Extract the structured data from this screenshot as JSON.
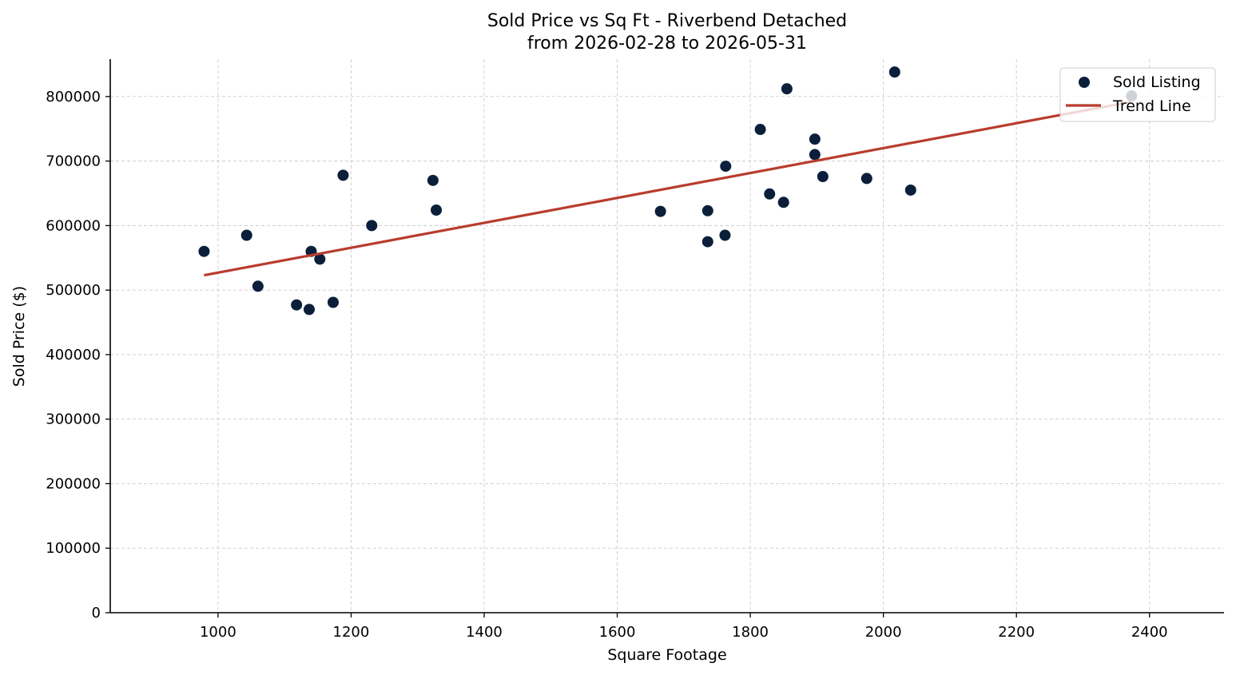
{
  "chart_data": {
    "type": "scatter",
    "title_line1": "Sold Price vs Sq Ft - Riverbend Detached",
    "title_line2": "from 2026-02-28 to 2026-05-31",
    "xlabel": "Square Footage",
    "ylabel": "Sold Price ($)",
    "xlim": [
      838,
      2512
    ],
    "ylim": [
      0,
      858000
    ],
    "x_ticks": [
      1000,
      1200,
      1400,
      1600,
      1800,
      2000,
      2200,
      2400
    ],
    "y_ticks": [
      0,
      100000,
      200000,
      300000,
      400000,
      500000,
      600000,
      700000,
      800000
    ],
    "grid": true,
    "legend_position": "top-right",
    "legend": {
      "scatter_label": "Sold Listing",
      "line_label": "Trend Line"
    },
    "colors": {
      "point": "#0b1f3a",
      "trend": "#b83c2e"
    },
    "series": [
      {
        "name": "Sold Listing",
        "kind": "scatter",
        "points": [
          {
            "x": 979,
            "y": 560000
          },
          {
            "x": 1043,
            "y": 585000
          },
          {
            "x": 1060,
            "y": 506000
          },
          {
            "x": 1118,
            "y": 477000
          },
          {
            "x": 1137,
            "y": 470000
          },
          {
            "x": 1140,
            "y": 560000
          },
          {
            "x": 1153,
            "y": 548000
          },
          {
            "x": 1173,
            "y": 481000
          },
          {
            "x": 1188,
            "y": 678000
          },
          {
            "x": 1231,
            "y": 600000
          },
          {
            "x": 1323,
            "y": 670000
          },
          {
            "x": 1328,
            "y": 624000
          },
          {
            "x": 1665,
            "y": 622000
          },
          {
            "x": 1736,
            "y": 623000
          },
          {
            "x": 1736,
            "y": 575000
          },
          {
            "x": 1762,
            "y": 585000
          },
          {
            "x": 1763,
            "y": 692000
          },
          {
            "x": 1815,
            "y": 749000
          },
          {
            "x": 1829,
            "y": 649000
          },
          {
            "x": 1850,
            "y": 636000
          },
          {
            "x": 1855,
            "y": 812000
          },
          {
            "x": 1897,
            "y": 734000
          },
          {
            "x": 1897,
            "y": 710000
          },
          {
            "x": 1909,
            "y": 676000
          },
          {
            "x": 1975,
            "y": 673000
          },
          {
            "x": 2017,
            "y": 838000
          },
          {
            "x": 2041,
            "y": 655000
          },
          {
            "x": 2373,
            "y": 801000
          }
        ]
      },
      {
        "name": "Trend Line",
        "kind": "line",
        "points": [
          {
            "x": 979,
            "y": 523000
          },
          {
            "x": 2373,
            "y": 792000
          }
        ]
      }
    ]
  }
}
